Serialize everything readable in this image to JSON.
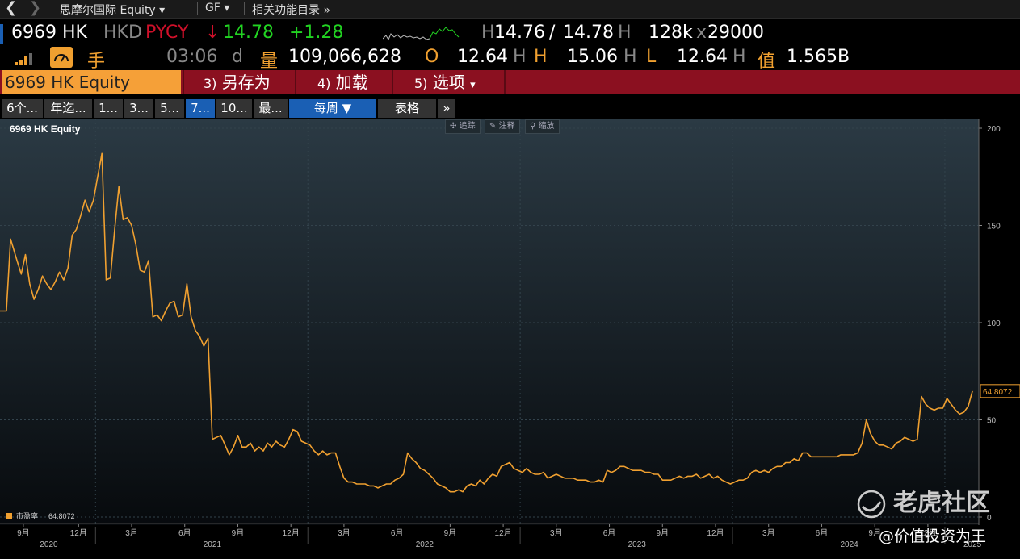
{
  "nav": {
    "security_name": "思摩尔国际 Equity",
    "function": "GF",
    "related": "相关功能目录"
  },
  "quote": {
    "ticker": "6969 HK",
    "currency": "HKD",
    "pricing_source": "PYCY",
    "direction": "↓",
    "last": "14.78",
    "change": "+1.28",
    "bid_prefix": "H",
    "bid": "14.76",
    "slash": "/",
    "ask": "14.78",
    "ask_suffix": "H",
    "size": "128k",
    "size_x": "x",
    "size2": "29000",
    "time": "03:06",
    "time_suffix": "d",
    "vol_label": "量",
    "volume": "109,066,628",
    "open_label": "O",
    "open": "12.64",
    "open_suffix": "H",
    "high_label": "H",
    "high": "15.06",
    "high_suffix": "H",
    "low_label": "L",
    "low": "12.64",
    "low_suffix": "H",
    "val_label": "值",
    "value": "1.565B",
    "hand_label": "手"
  },
  "function_bar": {
    "security": "6969 HK Equity",
    "btn3_num": "3)",
    "btn3": "另存为",
    "btn4_num": "4)",
    "btn4": "加载",
    "btn5_num": "5)",
    "btn5": "选项",
    "btn5_caret": "▾"
  },
  "range_bar": {
    "buttons": [
      "6个...",
      "年迄...",
      "1...",
      "3...",
      "5...",
      "7...",
      "10...",
      "最..."
    ],
    "selected": "7...",
    "period": "每周 ▼",
    "table": "表格",
    "more": "»"
  },
  "toolbar": {
    "track": "追踪",
    "annotate": "注释",
    "zoom": "缩放"
  },
  "chart_data": {
    "type": "line",
    "title": "6969 HK Equity",
    "series": [
      {
        "name": "市盈率",
        "last_value": "64.8072",
        "color": "#f0a030",
        "points": [
          [
            2020.55,
            106
          ],
          [
            2020.58,
            106
          ],
          [
            2020.6,
            143
          ],
          [
            2020.63,
            132
          ],
          [
            2020.65,
            125
          ],
          [
            2020.67,
            135
          ],
          [
            2020.69,
            120
          ],
          [
            2020.71,
            112
          ],
          [
            2020.73,
            117
          ],
          [
            2020.75,
            124
          ],
          [
            2020.77,
            120
          ],
          [
            2020.79,
            117
          ],
          [
            2020.81,
            121
          ],
          [
            2020.83,
            126
          ],
          [
            2020.85,
            122
          ],
          [
            2020.87,
            128
          ],
          [
            2020.89,
            145
          ],
          [
            2020.91,
            148
          ],
          [
            2020.93,
            155
          ],
          [
            2020.95,
            163
          ],
          [
            2020.97,
            157
          ],
          [
            2020.99,
            163
          ],
          [
            2021.01,
            175
          ],
          [
            2021.03,
            187
          ],
          [
            2021.05,
            122
          ],
          [
            2021.07,
            123
          ],
          [
            2021.09,
            148
          ],
          [
            2021.11,
            170
          ],
          [
            2021.13,
            153
          ],
          [
            2021.15,
            154
          ],
          [
            2021.17,
            150
          ],
          [
            2021.19,
            140
          ],
          [
            2021.21,
            127
          ],
          [
            2021.23,
            126
          ],
          [
            2021.25,
            132
          ],
          [
            2021.27,
            103
          ],
          [
            2021.29,
            104
          ],
          [
            2021.31,
            101
          ],
          [
            2021.33,
            106
          ],
          [
            2021.35,
            110
          ],
          [
            2021.37,
            111
          ],
          [
            2021.39,
            103
          ],
          [
            2021.41,
            104
          ],
          [
            2021.43,
            120
          ],
          [
            2021.45,
            103
          ],
          [
            2021.47,
            96
          ],
          [
            2021.49,
            93
          ],
          [
            2021.51,
            88
          ],
          [
            2021.53,
            92
          ],
          [
            2021.55,
            40
          ],
          [
            2021.57,
            41
          ],
          [
            2021.59,
            42
          ],
          [
            2021.61,
            37
          ],
          [
            2021.63,
            32
          ],
          [
            2021.65,
            36
          ],
          [
            2021.67,
            42
          ],
          [
            2021.69,
            36
          ],
          [
            2021.71,
            36
          ],
          [
            2021.73,
            38
          ],
          [
            2021.75,
            34
          ],
          [
            2021.77,
            36
          ],
          [
            2021.79,
            34
          ],
          [
            2021.81,
            38
          ],
          [
            2021.83,
            36
          ],
          [
            2021.85,
            39
          ],
          [
            2021.87,
            37
          ],
          [
            2021.89,
            36
          ],
          [
            2021.91,
            40
          ],
          [
            2021.93,
            45
          ],
          [
            2021.95,
            44
          ],
          [
            2021.97,
            39
          ],
          [
            2021.99,
            38
          ],
          [
            2022.01,
            37
          ],
          [
            2022.03,
            34
          ],
          [
            2022.05,
            32
          ],
          [
            2022.07,
            34
          ],
          [
            2022.09,
            32
          ],
          [
            2022.11,
            33
          ],
          [
            2022.13,
            33
          ],
          [
            2022.15,
            26
          ],
          [
            2022.17,
            20
          ],
          [
            2022.19,
            18
          ],
          [
            2022.21,
            18
          ],
          [
            2022.23,
            17
          ],
          [
            2022.25,
            17
          ],
          [
            2022.27,
            17
          ],
          [
            2022.29,
            16
          ],
          [
            2022.31,
            16
          ],
          [
            2022.33,
            15
          ],
          [
            2022.35,
            16
          ],
          [
            2022.37,
            17
          ],
          [
            2022.39,
            17
          ],
          [
            2022.41,
            19
          ],
          [
            2022.43,
            20
          ],
          [
            2022.45,
            22
          ],
          [
            2022.47,
            33
          ],
          [
            2022.49,
            30
          ],
          [
            2022.51,
            28
          ],
          [
            2022.53,
            25
          ],
          [
            2022.55,
            24
          ],
          [
            2022.57,
            22
          ],
          [
            2022.59,
            20
          ],
          [
            2022.61,
            17
          ],
          [
            2022.63,
            16
          ],
          [
            2022.65,
            15
          ],
          [
            2022.67,
            13
          ],
          [
            2022.69,
            13
          ],
          [
            2022.71,
            14
          ],
          [
            2022.73,
            13
          ],
          [
            2022.75,
            16
          ],
          [
            2022.77,
            17
          ],
          [
            2022.79,
            16
          ],
          [
            2022.81,
            19
          ],
          [
            2022.83,
            17
          ],
          [
            2022.85,
            20
          ],
          [
            2022.87,
            22
          ],
          [
            2022.89,
            21
          ],
          [
            2022.91,
            26
          ],
          [
            2022.93,
            27
          ],
          [
            2022.95,
            28
          ],
          [
            2022.97,
            25
          ],
          [
            2022.99,
            24
          ],
          [
            2023.01,
            23
          ],
          [
            2023.03,
            25
          ],
          [
            2023.05,
            23
          ],
          [
            2023.07,
            22
          ],
          [
            2023.09,
            22
          ],
          [
            2023.11,
            23
          ],
          [
            2023.13,
            20
          ],
          [
            2023.15,
            21
          ],
          [
            2023.17,
            22
          ],
          [
            2023.19,
            21
          ],
          [
            2023.21,
            20
          ],
          [
            2023.23,
            20
          ],
          [
            2023.25,
            20
          ],
          [
            2023.27,
            19
          ],
          [
            2023.29,
            19
          ],
          [
            2023.31,
            19
          ],
          [
            2023.33,
            18
          ],
          [
            2023.35,
            18
          ],
          [
            2023.37,
            19
          ],
          [
            2023.39,
            18
          ],
          [
            2023.41,
            24
          ],
          [
            2023.43,
            23
          ],
          [
            2023.45,
            24
          ],
          [
            2023.47,
            26
          ],
          [
            2023.49,
            26
          ],
          [
            2023.51,
            25
          ],
          [
            2023.53,
            24
          ],
          [
            2023.55,
            24
          ],
          [
            2023.57,
            24
          ],
          [
            2023.59,
            23
          ],
          [
            2023.61,
            23
          ],
          [
            2023.63,
            22
          ],
          [
            2023.65,
            22
          ],
          [
            2023.67,
            19
          ],
          [
            2023.69,
            19
          ],
          [
            2023.71,
            19
          ],
          [
            2023.73,
            20
          ],
          [
            2023.75,
            21
          ],
          [
            2023.77,
            20
          ],
          [
            2023.79,
            21
          ],
          [
            2023.81,
            21
          ],
          [
            2023.83,
            22
          ],
          [
            2023.85,
            20
          ],
          [
            2023.87,
            21
          ],
          [
            2023.89,
            22
          ],
          [
            2023.91,
            20
          ],
          [
            2023.93,
            21
          ],
          [
            2023.95,
            19
          ],
          [
            2023.97,
            18
          ],
          [
            2023.99,
            17
          ],
          [
            2024.01,
            18
          ],
          [
            2024.03,
            19
          ],
          [
            2024.05,
            19
          ],
          [
            2024.07,
            20
          ],
          [
            2024.09,
            23
          ],
          [
            2024.11,
            24
          ],
          [
            2024.13,
            23
          ],
          [
            2024.15,
            24
          ],
          [
            2024.17,
            23
          ],
          [
            2024.19,
            25
          ],
          [
            2024.21,
            26
          ],
          [
            2024.23,
            26
          ],
          [
            2024.25,
            28
          ],
          [
            2024.27,
            28
          ],
          [
            2024.29,
            30
          ],
          [
            2024.31,
            29
          ],
          [
            2024.33,
            33
          ],
          [
            2024.35,
            33
          ],
          [
            2024.37,
            31
          ],
          [
            2024.39,
            31
          ],
          [
            2024.41,
            31
          ],
          [
            2024.43,
            31
          ],
          [
            2024.45,
            31
          ],
          [
            2024.47,
            31
          ],
          [
            2024.49,
            31
          ],
          [
            2024.51,
            32
          ],
          [
            2024.53,
            32
          ],
          [
            2024.55,
            32
          ],
          [
            2024.57,
            32
          ],
          [
            2024.59,
            33
          ],
          [
            2024.61,
            38
          ],
          [
            2024.63,
            50
          ],
          [
            2024.65,
            43
          ],
          [
            2024.67,
            39
          ],
          [
            2024.69,
            37
          ],
          [
            2024.71,
            37
          ],
          [
            2024.73,
            36
          ],
          [
            2024.75,
            35
          ],
          [
            2024.77,
            38
          ],
          [
            2024.79,
            39
          ],
          [
            2024.81,
            41
          ],
          [
            2024.83,
            40
          ],
          [
            2024.85,
            39
          ],
          [
            2024.87,
            40
          ],
          [
            2024.89,
            62
          ],
          [
            2024.91,
            58
          ],
          [
            2024.93,
            56
          ],
          [
            2024.95,
            55
          ],
          [
            2024.97,
            56
          ],
          [
            2024.99,
            56
          ],
          [
            2025.01,
            61
          ],
          [
            2025.03,
            58
          ],
          [
            2025.05,
            55
          ],
          [
            2025.07,
            53
          ],
          [
            2025.09,
            54
          ],
          [
            2025.11,
            57
          ],
          [
            2025.13,
            64.8
          ]
        ]
      }
    ],
    "y_ticks": [
      "200",
      "150",
      "100",
      "50",
      "0"
    ],
    "y_tick_values": [
      200,
      150,
      100,
      50,
      0
    ],
    "ylim": [
      0,
      200
    ],
    "xlim": [
      2020.55,
      2025.16
    ],
    "x_month_ticks": [
      {
        "label": "9月",
        "t": 2020.66
      },
      {
        "label": "12月",
        "t": 2020.92
      },
      {
        "label": "3月",
        "t": 2021.17
      },
      {
        "label": "6月",
        "t": 2021.42
      },
      {
        "label": "9月",
        "t": 2021.67
      },
      {
        "label": "12月",
        "t": 2021.92
      },
      {
        "label": "3月",
        "t": 2022.17
      },
      {
        "label": "6月",
        "t": 2022.42
      },
      {
        "label": "9月",
        "t": 2022.67
      },
      {
        "label": "12月",
        "t": 2022.92
      },
      {
        "label": "3月",
        "t": 2023.17
      },
      {
        "label": "6月",
        "t": 2023.42
      },
      {
        "label": "9月",
        "t": 2023.67
      },
      {
        "label": "12月",
        "t": 2023.92
      },
      {
        "label": "3月",
        "t": 2024.17
      },
      {
        "label": "6月",
        "t": 2024.42
      },
      {
        "label": "9月",
        "t": 2024.67
      },
      {
        "label": "12月",
        "t": 2024.92
      }
    ],
    "x_year_ticks": [
      {
        "label": "2020",
        "t": 2020.78
      },
      {
        "label": "2021",
        "t": 2021.55
      },
      {
        "label": "2022",
        "t": 2022.55
      },
      {
        "label": "2023",
        "t": 2023.55
      },
      {
        "label": "2024",
        "t": 2024.55
      },
      {
        "label": "2025",
        "t": 2025.13
      }
    ],
    "year_boundaries": [
      2021.0,
      2022.0,
      2023.0,
      2024.0,
      2025.0
    ],
    "grid": true,
    "legend_position": "bottom-left"
  },
  "watermark": {
    "brand": "老虎社区",
    "author": "@价值投资为王"
  }
}
